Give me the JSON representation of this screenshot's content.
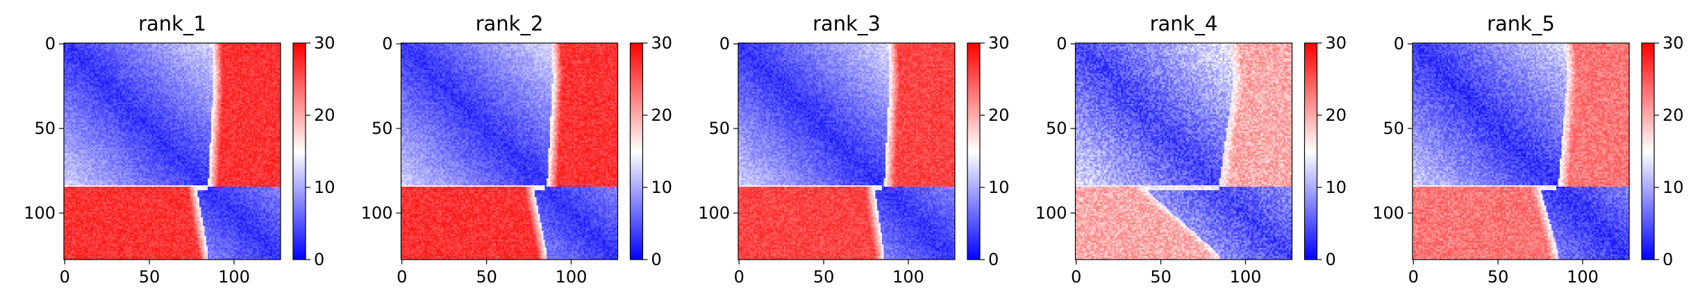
{
  "chart_data": [
    {
      "type": "heatmap",
      "title": "rank_1",
      "matrix_size": 128,
      "x_ticks": [
        0,
        50,
        100
      ],
      "y_ticks": [
        0,
        50,
        100
      ],
      "xlim": [
        0,
        127
      ],
      "ylim": [
        127,
        0
      ],
      "colorbar": {
        "colormap": "bwr",
        "min": 0,
        "max": 30,
        "ticks": [
          0,
          10,
          20,
          30
        ]
      },
      "block_structure": {
        "row_boundary": 85,
        "col_boundary": [
          85,
          78,
          92
        ],
        "low_block_value": 3,
        "cross_block_value": 27,
        "texture": 0.12
      }
    },
    {
      "type": "heatmap",
      "title": "rank_2",
      "matrix_size": 128,
      "x_ticks": [
        0,
        50,
        100
      ],
      "y_ticks": [
        0,
        50,
        100
      ],
      "xlim": [
        0,
        127
      ],
      "ylim": [
        127,
        0
      ],
      "colorbar": {
        "colormap": "bwr",
        "min": 0,
        "max": 30,
        "ticks": [
          0,
          10,
          20,
          30
        ]
      },
      "block_structure": {
        "row_boundary": 85,
        "col_boundary": [
          86,
          78,
          94
        ],
        "low_block_value": 3,
        "cross_block_value": 27,
        "texture": 0.12
      }
    },
    {
      "type": "heatmap",
      "title": "rank_3",
      "matrix_size": 128,
      "x_ticks": [
        0,
        50,
        100
      ],
      "y_ticks": [
        0,
        50,
        100
      ],
      "xlim": [
        0,
        127
      ],
      "ylim": [
        127,
        0
      ],
      "colorbar": {
        "colormap": "bwr",
        "min": 0,
        "max": 30,
        "ticks": [
          0,
          10,
          20,
          30
        ]
      },
      "block_structure": {
        "row_boundary": 85,
        "col_boundary": [
          86,
          80,
          93
        ],
        "low_block_value": 3,
        "cross_block_value": 26,
        "texture": 0.12
      }
    },
    {
      "type": "heatmap",
      "title": "rank_4",
      "matrix_size": 128,
      "x_ticks": [
        0,
        50,
        100
      ],
      "y_ticks": [
        0,
        50,
        100
      ],
      "xlim": [
        0,
        127
      ],
      "ylim": [
        127,
        0
      ],
      "colorbar": {
        "colormap": "bwr",
        "min": 0,
        "max": 30,
        "ticks": [
          0,
          10,
          20,
          30
        ]
      },
      "block_structure": {
        "row_boundary": 85,
        "col_boundary": [
          85,
          40,
          105
        ],
        "low_block_value": 4,
        "cross_block_value": 20,
        "texture": 0.18
      }
    },
    {
      "type": "heatmap",
      "title": "rank_5",
      "matrix_size": 128,
      "x_ticks": [
        0,
        50,
        100
      ],
      "y_ticks": [
        0,
        50,
        100
      ],
      "xlim": [
        0,
        127
      ],
      "ylim": [
        127,
        0
      ],
      "colorbar": {
        "colormap": "bwr",
        "min": 0,
        "max": 30,
        "ticks": [
          0,
          10,
          20,
          30
        ]
      },
      "block_structure": {
        "row_boundary": 85,
        "col_boundary": [
          86,
          75,
          98
        ],
        "low_block_value": 3,
        "cross_block_value": 23,
        "texture": 0.15
      }
    }
  ]
}
